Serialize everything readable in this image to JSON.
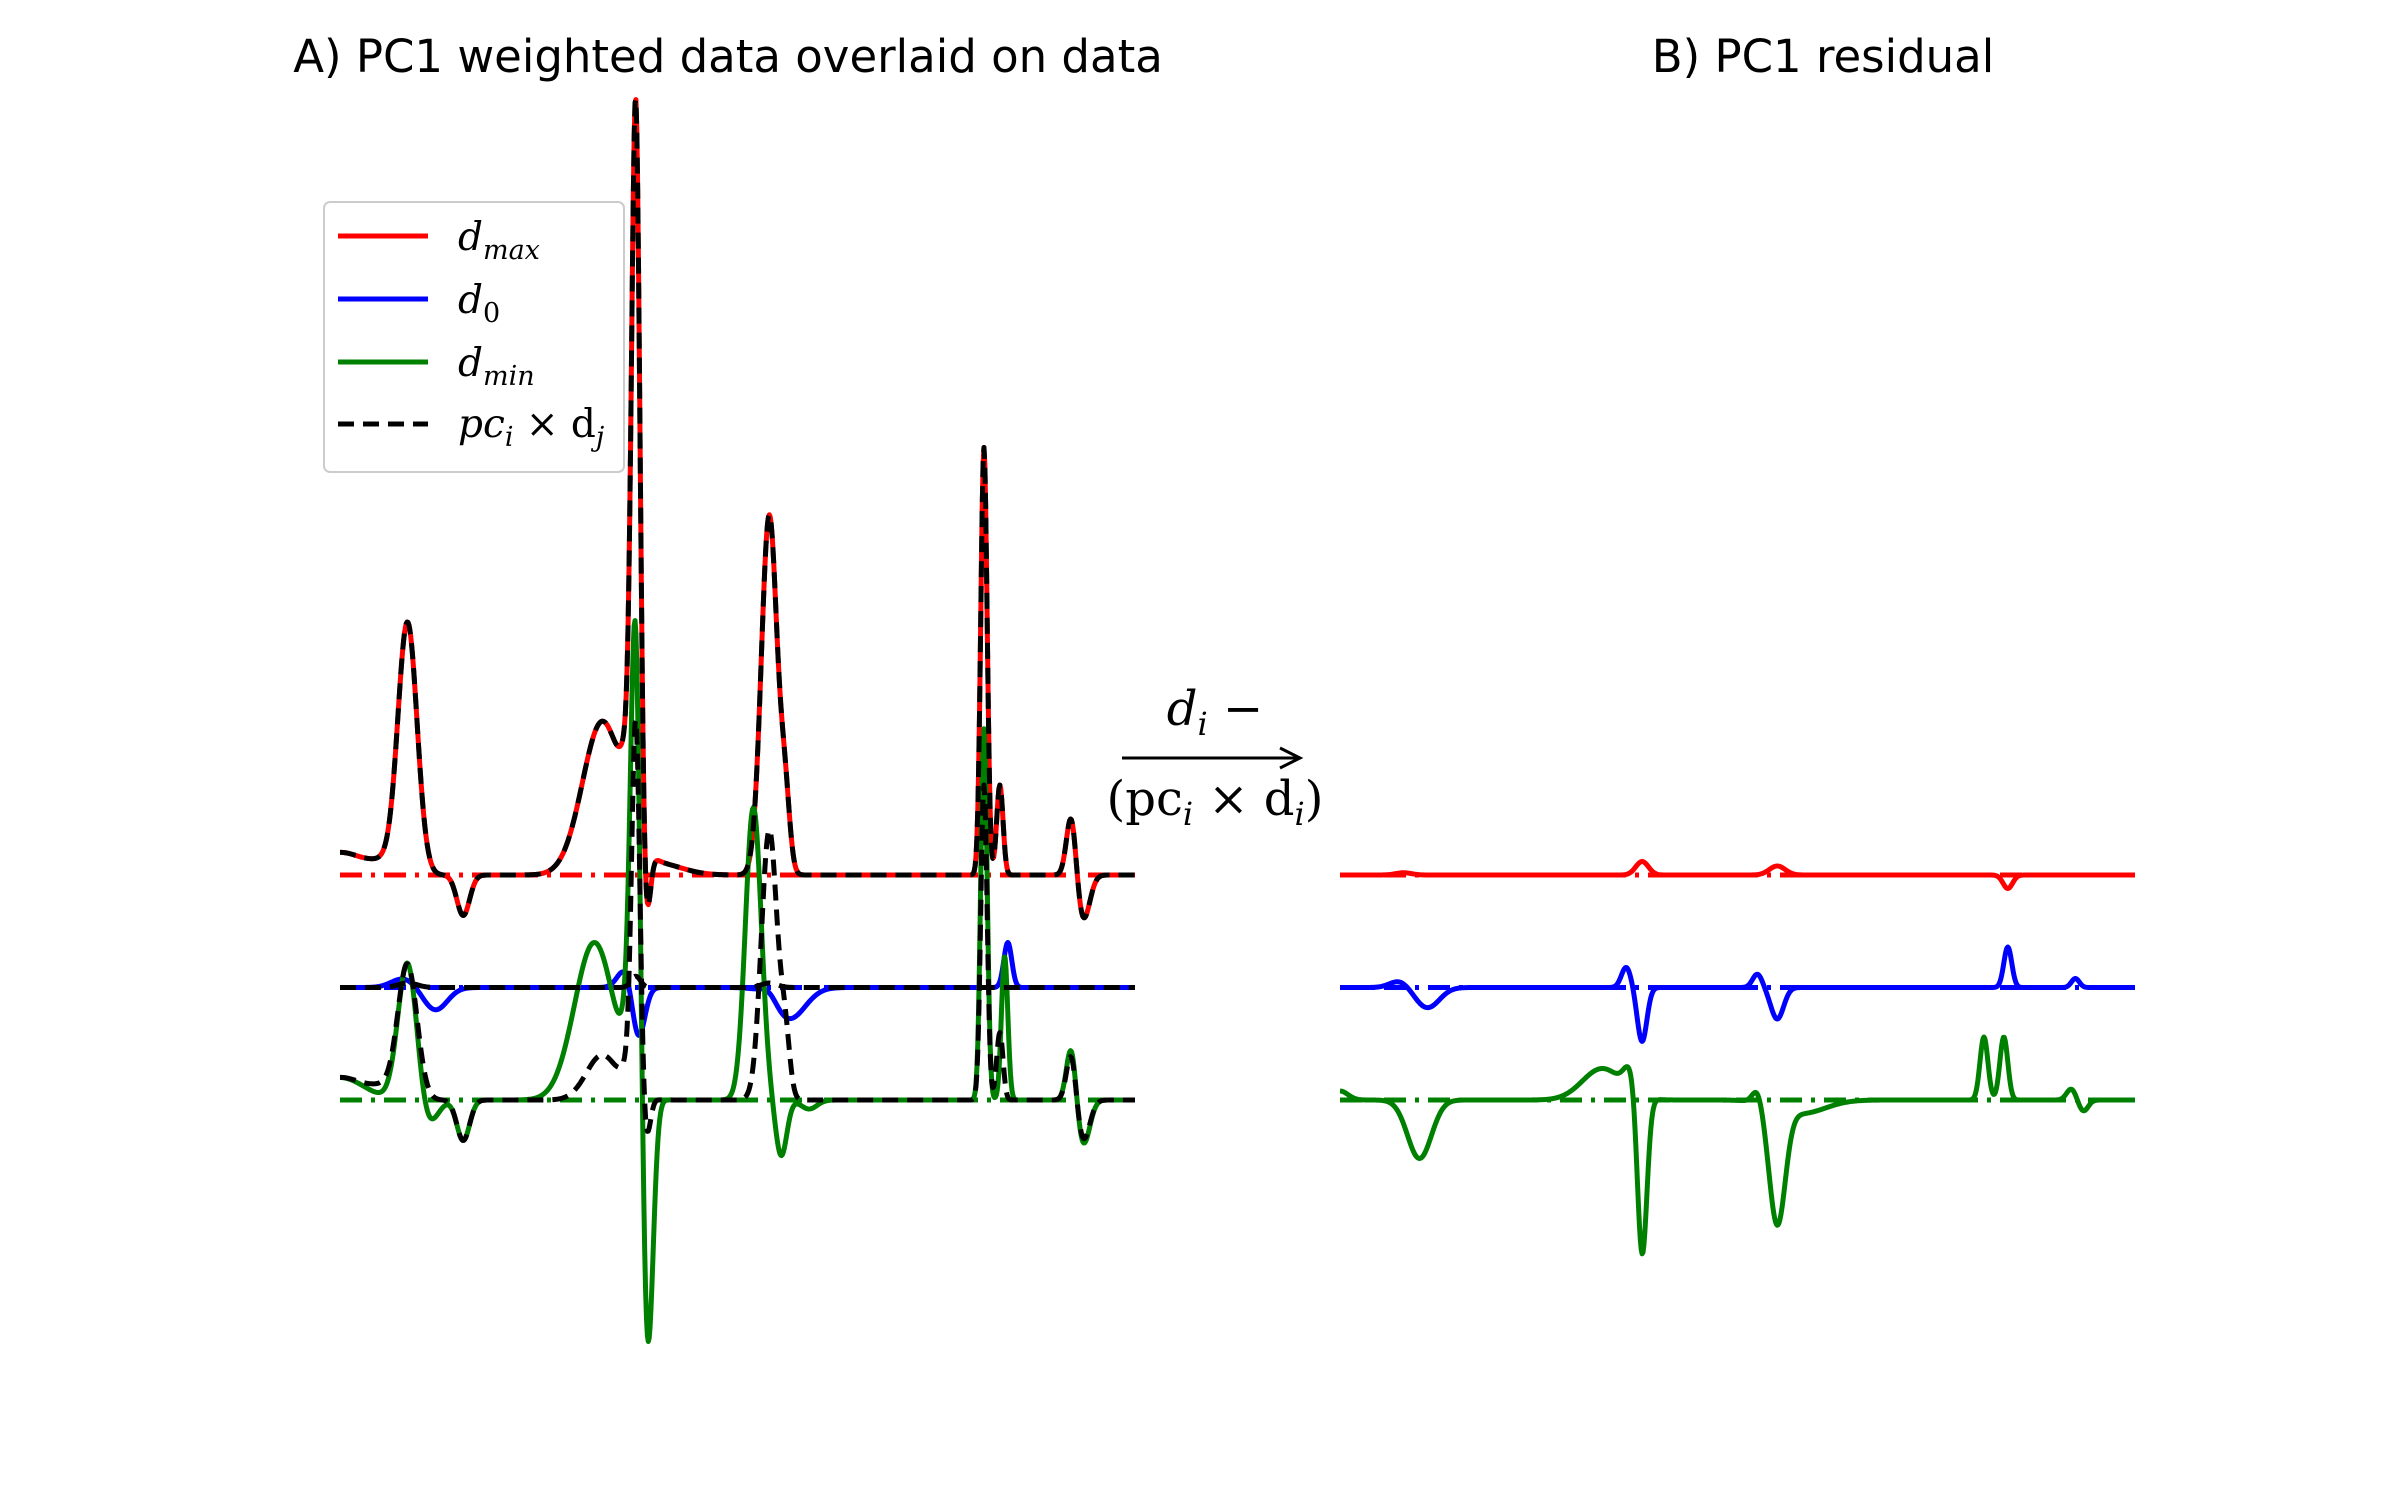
{
  "chart_data": [
    {
      "type": "line",
      "title": "A) PC1 weighted data overlaid on data",
      "colors": {
        "d_max": "#ff0000",
        "d_0": "#0000ff",
        "d_min": "#008000",
        "pc": "#000000"
      },
      "legend": {
        "placement": "top-left",
        "entries": [
          {
            "key": "d_max",
            "label": "d",
            "sub": "max",
            "style": "solid",
            "color": "#ff0000"
          },
          {
            "key": "d_0",
            "label": "d",
            "sub": "0",
            "style": "solid",
            "color": "#0000ff"
          },
          {
            "key": "d_min",
            "label": "d",
            "sub": "min",
            "style": "solid",
            "color": "#008000"
          },
          {
            "key": "pc",
            "label": "pc",
            "sub": "i",
            "mid": " × d",
            "sub2": "j",
            "style": "dashed",
            "color": "#000000"
          }
        ]
      },
      "axes_visible": false,
      "x_range": [
        0,
        1
      ],
      "y_range": [
        -0.9,
        2.8
      ],
      "baselines": [
        {
          "series": "d_max",
          "offset": 1.0,
          "style": "dash-dot",
          "color": "#ff0000"
        },
        {
          "series": "d_0",
          "offset": 0.5,
          "style": "dash-dot",
          "color": "#0000ff"
        },
        {
          "series": "d_min",
          "offset": 0.0,
          "style": "dash-dot",
          "color": "#008000"
        }
      ],
      "peaks_comment": "each series = offset + sum of signed Gaussian peaks [center, amplitude, width] on a normalized x axis",
      "series": [
        {
          "key": "d_max",
          "offset": 1.0,
          "peaks": [
            [
              0.0,
              0.1,
              0.03
            ],
            [
              0.06,
              0.05,
              0.02
            ],
            [
              0.085,
              1.1,
              0.012
            ],
            [
              0.155,
              -0.18,
              0.008
            ],
            [
              0.33,
              0.68,
              0.025
            ],
            [
              0.37,
              0.48,
              0.01
            ],
            [
              0.372,
              2.8,
              0.005
            ],
            [
              0.385,
              -0.4,
              0.005
            ],
            [
              0.4,
              0.05,
              0.03
            ],
            [
              0.54,
              1.6,
              0.01
            ],
            [
              0.56,
              0.3,
              0.006
            ],
            [
              0.81,
              1.9,
              0.004
            ],
            [
              0.83,
              0.4,
              0.004
            ],
            [
              0.92,
              0.28,
              0.006
            ],
            [
              0.935,
              -0.2,
              0.008
            ]
          ]
        },
        {
          "key": "d_0",
          "offset": 0.5,
          "peaks": [
            [
              0.08,
              0.04,
              0.015
            ],
            [
              0.12,
              -0.1,
              0.015
            ],
            [
              0.36,
              0.09,
              0.01
            ],
            [
              0.375,
              -0.24,
              0.008
            ],
            [
              0.54,
              0.04,
              0.01
            ],
            [
              0.565,
              -0.14,
              0.02
            ],
            [
              0.84,
              0.2,
              0.005
            ]
          ]
        },
        {
          "key": "d_min",
          "offset": 0.0,
          "peaks": [
            [
              0.0,
              0.1,
              0.03
            ],
            [
              0.085,
              0.62,
              0.012
            ],
            [
              0.11,
              -0.12,
              0.012
            ],
            [
              0.155,
              -0.18,
              0.008
            ],
            [
              0.32,
              0.7,
              0.025
            ],
            [
              0.365,
              0.26,
              0.008
            ],
            [
              0.372,
              2.0,
              0.006
            ],
            [
              0.385,
              -0.9,
              0.007
            ],
            [
              0.39,
              -0.35,
              0.006
            ],
            [
              0.52,
              1.3,
              0.01
            ],
            [
              0.555,
              -0.25,
              0.007
            ],
            [
              0.59,
              -0.04,
              0.01
            ],
            [
              0.81,
              1.65,
              0.004
            ],
            [
              0.836,
              0.64,
              0.004
            ],
            [
              0.92,
              0.25,
              0.006
            ],
            [
              0.935,
              -0.2,
              0.008
            ]
          ]
        },
        {
          "key": "pc_max",
          "offset": 1.0,
          "dashed": true,
          "peaks": [
            [
              0.0,
              0.1,
              0.03
            ],
            [
              0.06,
              0.05,
              0.02
            ],
            [
              0.085,
              1.1,
              0.012
            ],
            [
              0.155,
              -0.18,
              0.008
            ],
            [
              0.33,
              0.68,
              0.025
            ],
            [
              0.37,
              0.48,
              0.01
            ],
            [
              0.372,
              2.8,
              0.005
            ],
            [
              0.385,
              -0.4,
              0.005
            ],
            [
              0.4,
              0.05,
              0.03
            ],
            [
              0.54,
              1.6,
              0.01
            ],
            [
              0.56,
              0.3,
              0.006
            ],
            [
              0.81,
              1.9,
              0.004
            ],
            [
              0.83,
              0.4,
              0.004
            ],
            [
              0.92,
              0.28,
              0.006
            ],
            [
              0.935,
              -0.2,
              0.008
            ]
          ]
        },
        {
          "key": "pc_0",
          "offset": 0.5,
          "dashed": true,
          "peaks": [
            [
              0.085,
              0.02,
              0.012
            ],
            [
              0.372,
              0.05,
              0.006
            ],
            [
              0.54,
              0.02,
              0.01
            ]
          ]
        },
        {
          "key": "pc_min",
          "offset": 0.0,
          "dashed": true,
          "peaks": [
            [
              0.0,
              0.1,
              0.03
            ],
            [
              0.06,
              0.05,
              0.02
            ],
            [
              0.085,
              0.58,
              0.012
            ],
            [
              0.155,
              -0.18,
              0.008
            ],
            [
              0.33,
              0.2,
              0.02
            ],
            [
              0.37,
              0.18,
              0.01
            ],
            [
              0.372,
              1.5,
              0.005
            ],
            [
              0.385,
              -0.22,
              0.005
            ],
            [
              0.54,
              1.2,
              0.01
            ],
            [
              0.56,
              0.25,
              0.006
            ],
            [
              0.81,
              1.4,
              0.004
            ],
            [
              0.83,
              0.3,
              0.004
            ],
            [
              0.92,
              0.22,
              0.006
            ],
            [
              0.935,
              -0.18,
              0.008
            ]
          ]
        }
      ],
      "arrow_label_top": "d",
      "arrow_label_top_sub": "i",
      "arrow_label_top_tail": " −",
      "arrow_label_bottom": "(pc",
      "arrow_label_bottom_sub": "i",
      "arrow_label_bottom_mid": " × d",
      "arrow_label_bottom_sub2": "i",
      "arrow_label_bottom_tail": ")"
    },
    {
      "type": "line",
      "title": "B) PC1 residual",
      "axes_visible": false,
      "x_range": [
        0,
        1
      ],
      "y_range": [
        -0.9,
        2.8
      ],
      "baselines": [
        {
          "series": "d_max",
          "offset": 1.0,
          "style": "dash-dot",
          "color": "#ff0000"
        },
        {
          "series": "d_0",
          "offset": 0.5,
          "style": "dash-dot",
          "color": "#0000ff"
        },
        {
          "series": "d_min",
          "offset": 0.0,
          "style": "dash-dot",
          "color": "#008000"
        }
      ],
      "series": [
        {
          "key": "d_max",
          "offset": 1.0,
          "peaks": [
            [
              0.08,
              0.01,
              0.01
            ],
            [
              0.38,
              0.06,
              0.008
            ],
            [
              0.55,
              0.04,
              0.01
            ],
            [
              0.84,
              -0.06,
              0.006
            ]
          ]
        },
        {
          "key": "d_0",
          "offset": 0.5,
          "peaks": [
            [
              0.075,
              0.03,
              0.012
            ],
            [
              0.11,
              -0.09,
              0.015
            ],
            [
              0.36,
              0.09,
              0.006
            ],
            [
              0.38,
              -0.24,
              0.006
            ],
            [
              0.525,
              0.06,
              0.006
            ],
            [
              0.55,
              -0.14,
              0.008
            ],
            [
              0.84,
              0.18,
              0.005
            ],
            [
              0.925,
              0.04,
              0.005
            ]
          ]
        },
        {
          "key": "d_min",
          "offset": 0.0,
          "peaks": [
            [
              0.0,
              0.04,
              0.01
            ],
            [
              0.1,
              -0.26,
              0.015
            ],
            [
              0.33,
              0.14,
              0.025
            ],
            [
              0.365,
              0.1,
              0.008
            ],
            [
              0.38,
              -0.72,
              0.006
            ],
            [
              0.525,
              0.06,
              0.006
            ],
            [
              0.55,
              -0.52,
              0.01
            ],
            [
              0.58,
              -0.06,
              0.03
            ],
            [
              0.81,
              0.28,
              0.005
            ],
            [
              0.835,
              0.28,
              0.005
            ],
            [
              0.92,
              0.05,
              0.006
            ],
            [
              0.935,
              -0.05,
              0.006
            ]
          ]
        }
      ]
    }
  ]
}
